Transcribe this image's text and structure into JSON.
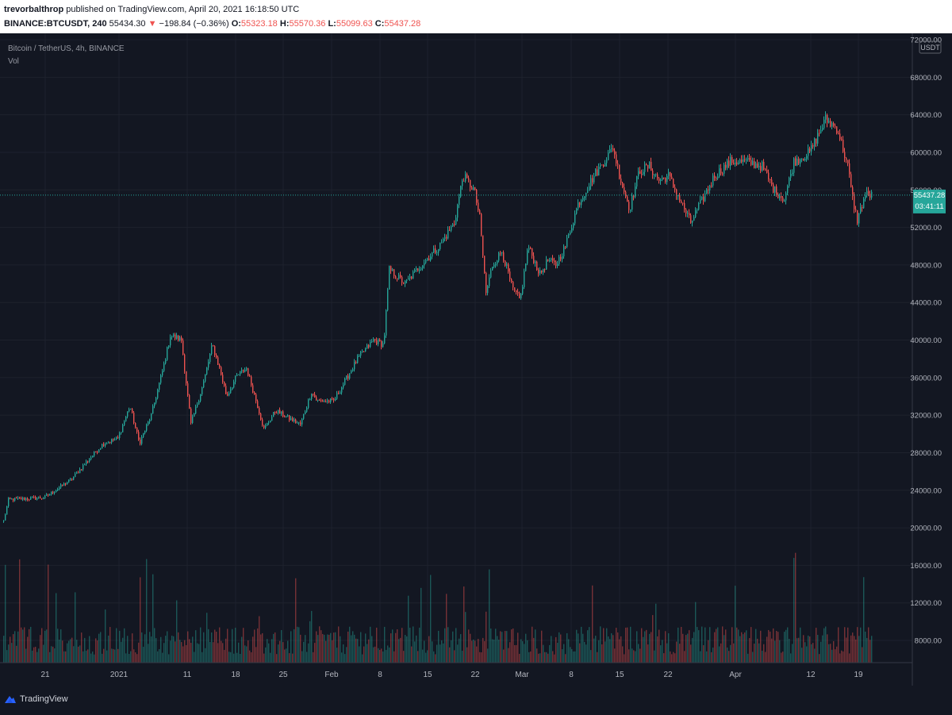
{
  "header": {
    "author": "trevorbalthrop",
    "published": "published on TradingView.com, April 20, 2021 16:18:50 UTC",
    "symbol": "BINANCE:BTCUSDT, 240",
    "last": "55434.30",
    "change": "−198.84 (−0.36%)",
    "open_label": "O:",
    "open": "55323.18",
    "high_label": "H:",
    "high": "55570.36",
    "low_label": "L:",
    "low": "55099.63",
    "close_label": "C:",
    "close": "55437.28",
    "down_arrow": "▼"
  },
  "legend": {
    "pair": "Bitcoin / TetherUS, 4h, BINANCE",
    "vol": "Vol"
  },
  "price_axis": {
    "currency": "USDT",
    "ticks": [
      "72000.00",
      "68000.00",
      "64000.00",
      "60000.00",
      "56000.00",
      "52000.00",
      "48000.00",
      "44000.00",
      "40000.00",
      "36000.00",
      "32000.00",
      "28000.00",
      "24000.00",
      "20000.00",
      "16000.00",
      "12000.00",
      "8000.00"
    ],
    "current_price": "55437.28",
    "countdown": "03:41:11"
  },
  "colors": {
    "up": "#26a69a",
    "down": "#ef5350",
    "bg": "#131722",
    "grid": "#1e222d",
    "axis_text": "#b2b5be"
  },
  "footer": {
    "brand": "TradingView"
  },
  "chart_data": {
    "type": "candlestick",
    "title": "Bitcoin / TetherUS, 4h, BINANCE",
    "xlabel": "",
    "ylabel": "",
    "x_ticks": [
      "21",
      "2021",
      "11",
      "18",
      "25",
      "Feb",
      "8",
      "15",
      "22",
      "Mar",
      "8",
      "15",
      "22",
      "Apr",
      "12",
      "19"
    ],
    "ylim": [
      19000,
      72000
    ],
    "interval": "4h",
    "grid": true,
    "series": [
      {
        "name": "Price",
        "anchor_closes": [
          [
            0,
            19200
          ],
          [
            10,
            23000
          ],
          [
            55,
            23200
          ],
          [
            90,
            25200
          ],
          [
            106,
            26800
          ],
          [
            130,
            29000
          ],
          [
            148,
            29500
          ],
          [
            163,
            33000
          ],
          [
            175,
            29000
          ],
          [
            190,
            32000
          ],
          [
            205,
            37000
          ],
          [
            214,
            40500
          ],
          [
            228,
            40000
          ],
          [
            240,
            31000
          ],
          [
            256,
            35500
          ],
          [
            267,
            39500
          ],
          [
            276,
            37000
          ],
          [
            285,
            34000
          ],
          [
            298,
            36200
          ],
          [
            310,
            37000
          ],
          [
            324,
            33000
          ],
          [
            332,
            30500
          ],
          [
            347,
            32500
          ],
          [
            360,
            31800
          ],
          [
            378,
            31000
          ],
          [
            392,
            34500
          ],
          [
            399,
            33500
          ],
          [
            420,
            33500
          ],
          [
            450,
            38000
          ],
          [
            470,
            40000
          ],
          [
            483,
            39500
          ],
          [
            490,
            47500
          ],
          [
            510,
            46000
          ],
          [
            530,
            48000
          ],
          [
            553,
            50000
          ],
          [
            572,
            52500
          ],
          [
            583,
            57500
          ],
          [
            597,
            56000
          ],
          [
            604,
            53000
          ],
          [
            612,
            45000
          ],
          [
            620,
            48000
          ],
          [
            632,
            49500
          ],
          [
            645,
            45500
          ],
          [
            655,
            44200
          ],
          [
            665,
            50000
          ],
          [
            680,
            47000
          ],
          [
            690,
            48500
          ],
          [
            700,
            48000
          ],
          [
            712,
            50000
          ],
          [
            728,
            54500
          ],
          [
            748,
            57500
          ],
          [
            772,
            60500
          ],
          [
            782,
            57000
          ],
          [
            793,
            54000
          ],
          [
            805,
            58000
          ],
          [
            818,
            58500
          ],
          [
            830,
            57000
          ],
          [
            842,
            57500
          ],
          [
            856,
            55000
          ],
          [
            870,
            52500
          ],
          [
            885,
            55000
          ],
          [
            900,
            57500
          ],
          [
            920,
            59000
          ],
          [
            940,
            59000
          ],
          [
            960,
            58500
          ],
          [
            975,
            56000
          ],
          [
            988,
            55000
          ],
          [
            1000,
            59000
          ],
          [
            1020,
            60000
          ],
          [
            1040,
            63500
          ],
          [
            1055,
            62500
          ],
          [
            1068,
            58500
          ],
          [
            1074,
            55000
          ],
          [
            1080,
            52800
          ],
          [
            1090,
            55500
          ],
          [
            1098,
            55437
          ]
        ]
      },
      {
        "name": "Vol",
        "description": "4h volume bars, typical 6500-9500, spikes up to 22000"
      }
    ]
  }
}
